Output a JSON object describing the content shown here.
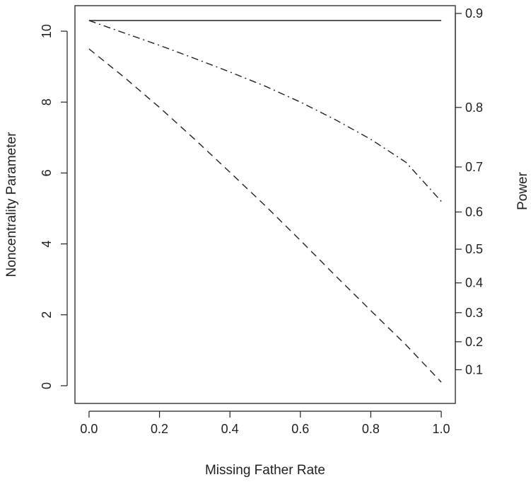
{
  "chart_data": {
    "type": "line",
    "xlabel": "Missing Father Rate",
    "ylabel": "Noncentrality Parameter",
    "y2label": "Power",
    "xlim": [
      -0.04,
      1.04
    ],
    "ylim": [
      -0.5,
      10.72
    ],
    "x_ticks": [
      "0.0",
      "0.2",
      "0.4",
      "0.6",
      "0.8",
      "1.0"
    ],
    "y_ticks": [
      "0",
      "2",
      "4",
      "6",
      "8",
      "10"
    ],
    "y2_ticks": [
      {
        "label": "0.1",
        "ncp": 0.45
      },
      {
        "label": "0.2",
        "ncp": 1.24
      },
      {
        "label": "0.3",
        "ncp": 2.06
      },
      {
        "label": "0.4",
        "ncp": 2.9
      },
      {
        "label": "0.5",
        "ncp": 3.85
      },
      {
        "label": "0.6",
        "ncp": 4.9
      },
      {
        "label": "0.7",
        "ncp": 6.17
      },
      {
        "label": "0.8",
        "ncp": 7.85
      },
      {
        "label": "0.9",
        "ncp": 10.5
      }
    ],
    "grid": false,
    "legend": "none",
    "series": [
      {
        "style": "solid",
        "x": [
          0.0,
          1.0
        ],
        "y": [
          10.3,
          10.3
        ]
      },
      {
        "style": "dashdot",
        "x": [
          0.0,
          0.1,
          0.2,
          0.3,
          0.4,
          0.5,
          0.6,
          0.7,
          0.8,
          0.9,
          1.0
        ],
        "y": [
          10.3,
          9.95,
          9.6,
          9.23,
          8.85,
          8.45,
          8.0,
          7.5,
          6.95,
          6.3,
          5.2
        ]
      },
      {
        "style": "dashed",
        "x": [
          0.0,
          0.1,
          0.2,
          0.3,
          0.4,
          0.5,
          0.6,
          0.7,
          0.8,
          0.9,
          1.0
        ],
        "y": [
          9.5,
          8.7,
          7.85,
          6.95,
          6.02,
          5.08,
          4.1,
          3.1,
          2.12,
          1.15,
          0.1
        ]
      }
    ]
  }
}
